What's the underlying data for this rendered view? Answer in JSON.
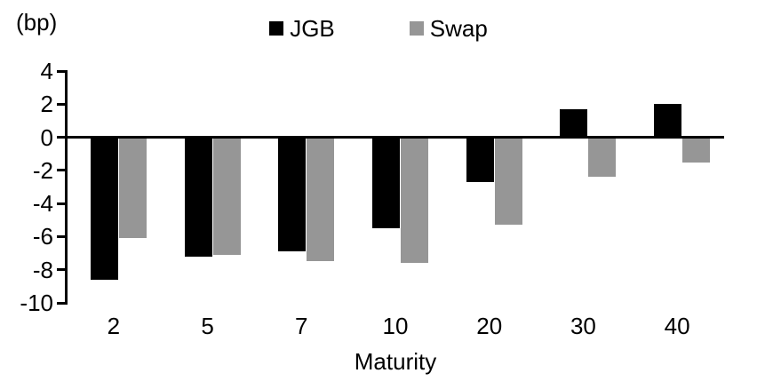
{
  "chart_data": {
    "type": "bar",
    "title": "",
    "unit_label": "(bp)",
    "xlabel": "Maturity",
    "ylabel": "(bp)",
    "categories": [
      "2",
      "5",
      "7",
      "10",
      "20",
      "30",
      "40"
    ],
    "series": [
      {
        "name": "JGB",
        "color": "#000000",
        "values": [
          -8.6,
          -7.2,
          -6.9,
          -5.5,
          -2.7,
          1.7,
          2.0
        ]
      },
      {
        "name": "Swap",
        "color": "#969696",
        "values": [
          -6.1,
          -7.1,
          -7.5,
          -7.6,
          -5.3,
          -2.4,
          -1.5
        ]
      }
    ],
    "ylim": [
      -10,
      4
    ],
    "yticks": [
      4,
      2,
      0,
      -2,
      -4,
      -6,
      -8,
      -10
    ],
    "grid": false,
    "legend_position": "top-center",
    "axis_color": "#000000",
    "background_color": "#ffffff"
  }
}
